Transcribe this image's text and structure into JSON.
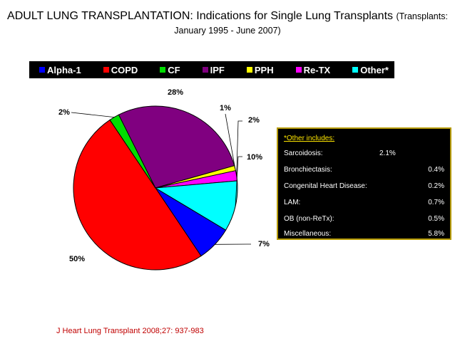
{
  "title": {
    "main": "ADULT LUNG TRANSPLANTATION: Indications for Single Lung Transplants",
    "sub_a": "(Transplants:",
    "sub_b": "January 1995 - June 2007)"
  },
  "chart_data": {
    "type": "pie",
    "legend_position": "top",
    "categories": [
      "Alpha-1",
      "COPD",
      "CF",
      "IPF",
      "PPH",
      "Re-TX",
      "Other*"
    ],
    "values": [
      7,
      50,
      2,
      28,
      1,
      2,
      10
    ],
    "value_labels": [
      "7%",
      "50%",
      "2%",
      "28%",
      "1%",
      "2%",
      "10%"
    ],
    "colors": [
      "#0000ff",
      "#ff0000",
      "#00dd00",
      "#800080",
      "#ffff00",
      "#ff00ff",
      "#00ffff"
    ]
  },
  "other_box": {
    "heading": "*Other includes:",
    "rows": [
      {
        "name": "Sarcoidosis:",
        "value": "2.1%"
      },
      {
        "name": "Bronchiectasis:",
        "value": "0.4%"
      },
      {
        "name": "Congenital Heart Disease:",
        "value": "0.2%"
      },
      {
        "name": "LAM:",
        "value": "0.7%"
      },
      {
        "name": "OB (non-ReTx):",
        "value": "0.5%"
      },
      {
        "name": "Miscellaneous:",
        "value": "5.8%"
      }
    ]
  },
  "citation": "J Heart Lung Transplant 2008;27: 937-983"
}
